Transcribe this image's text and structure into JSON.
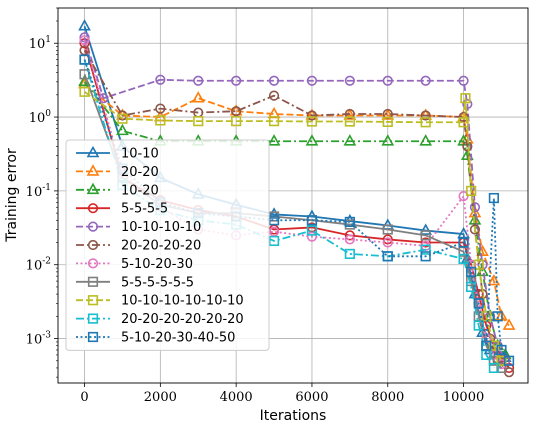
{
  "chart_data": {
    "type": "line",
    "xlabel": "Iterations",
    "ylabel": "Training error",
    "xlim": [
      -700,
      11700
    ],
    "ylim": [
      0.00025,
      30
    ],
    "yscale": "log",
    "xticks": [
      0,
      2000,
      4000,
      6000,
      8000,
      10000
    ],
    "yticks": [
      0.001,
      0.01,
      0.1,
      1,
      10
    ],
    "ytick_labels": [
      "10^-3",
      "10^-2",
      "10^-1",
      "10^0",
      "10^1"
    ],
    "legend_position": "lower-left",
    "series": [
      {
        "name": "10-10",
        "color": "#1f77b4",
        "dash": "solid",
        "marker": "triangle",
        "points": [
          [
            0,
            17
          ],
          [
            1000,
            0.4
          ],
          [
            2000,
            0.15
          ],
          [
            3000,
            0.09
          ],
          [
            4000,
            0.065
          ],
          [
            5000,
            0.048
          ],
          [
            6000,
            0.045
          ],
          [
            7000,
            0.039
          ],
          [
            8000,
            0.034
          ],
          [
            9000,
            0.029
          ],
          [
            10000,
            0.026
          ],
          [
            10100,
            0.012
          ],
          [
            10300,
            0.004
          ],
          [
            10500,
            0.0012
          ],
          [
            10700,
            0.0007
          ],
          [
            10900,
            0.0006
          ],
          [
            11100,
            0.00055
          ]
        ]
      },
      {
        "name": "20-20",
        "color": "#ff7f0e",
        "dash": "dashed",
        "marker": "triangle",
        "points": [
          [
            0,
            2.8
          ],
          [
            1000,
            1.05
          ],
          [
            2000,
            1.0
          ],
          [
            3000,
            1.8
          ],
          [
            4000,
            1.2
          ],
          [
            5000,
            1.1
          ],
          [
            6000,
            1.05
          ],
          [
            7000,
            1.05
          ],
          [
            8000,
            1.05
          ],
          [
            9000,
            1.05
          ],
          [
            10000,
            1.0
          ],
          [
            10100,
            0.5
          ],
          [
            10300,
            0.05
          ],
          [
            10500,
            0.015
          ],
          [
            10800,
            0.006
          ],
          [
            11000,
            0.002
          ],
          [
            11200,
            0.0015
          ]
        ]
      },
      {
        "name": "10-20",
        "color": "#2ca02c",
        "dash": "dashdot",
        "marker": "triangle",
        "points": [
          [
            0,
            3.0
          ],
          [
            1000,
            0.65
          ],
          [
            2000,
            0.47
          ],
          [
            3000,
            0.47
          ],
          [
            4000,
            0.47
          ],
          [
            5000,
            0.47
          ],
          [
            6000,
            0.47
          ],
          [
            7000,
            0.47
          ],
          [
            8000,
            0.47
          ],
          [
            9000,
            0.47
          ],
          [
            10000,
            0.47
          ],
          [
            10100,
            0.3
          ],
          [
            10300,
            0.04
          ],
          [
            10500,
            0.008
          ],
          [
            10700,
            0.002
          ],
          [
            10900,
            0.0008
          ],
          [
            11100,
            0.0006
          ]
        ]
      },
      {
        "name": "5-5-5-5",
        "color": "#d62728",
        "dash": "solid",
        "marker": "circle",
        "points": [
          [
            0,
            10
          ],
          [
            1000,
            0.15
          ],
          [
            2000,
            0.075
          ],
          [
            3000,
            0.055
          ],
          [
            4000,
            0.045
          ],
          [
            5000,
            0.03
          ],
          [
            6000,
            0.032
          ],
          [
            7000,
            0.025
          ],
          [
            8000,
            0.022
          ],
          [
            9000,
            0.02
          ],
          [
            10000,
            0.02
          ],
          [
            10200,
            0.01
          ],
          [
            10400,
            0.004
          ],
          [
            10600,
            0.0015
          ],
          [
            10800,
            0.0008
          ],
          [
            11000,
            0.00055
          ],
          [
            11200,
            0.0004
          ]
        ]
      },
      {
        "name": "10-10-10-10",
        "color": "#9467bd",
        "dash": "dashed",
        "marker": "circle",
        "points": [
          [
            0,
            12
          ],
          [
            500,
            1.8
          ],
          [
            2000,
            3.2
          ],
          [
            3000,
            3.1
          ],
          [
            4000,
            3.1
          ],
          [
            5000,
            3.1
          ],
          [
            6000,
            3.1
          ],
          [
            7000,
            3.1
          ],
          [
            8000,
            3.1
          ],
          [
            9000,
            3.1
          ],
          [
            10000,
            3.1
          ],
          [
            10100,
            1.5
          ],
          [
            10300,
            0.06
          ],
          [
            10500,
            0.01
          ],
          [
            10700,
            0.002
          ],
          [
            10900,
            0.0008
          ],
          [
            11100,
            0.0005
          ]
        ]
      },
      {
        "name": "20-20-20-20",
        "color": "#8c564b",
        "dash": "dashdot",
        "marker": "circle",
        "points": [
          [
            0,
            8
          ],
          [
            1000,
            1.05
          ],
          [
            2000,
            1.3
          ],
          [
            3000,
            1.15
          ],
          [
            4000,
            1.2
          ],
          [
            5000,
            1.95
          ],
          [
            6000,
            1.05
          ],
          [
            7000,
            1.1
          ],
          [
            8000,
            1.1
          ],
          [
            9000,
            1.05
          ],
          [
            10000,
            1.0
          ],
          [
            10100,
            0.4
          ],
          [
            10300,
            0.03
          ],
          [
            10500,
            0.004
          ],
          [
            10700,
            0.001
          ],
          [
            10900,
            0.0005
          ],
          [
            11200,
            0.00035
          ]
        ]
      },
      {
        "name": "5-10-20-30",
        "color": "#e377c2",
        "dash": "dotted",
        "marker": "circle",
        "points": [
          [
            0,
            11
          ],
          [
            1000,
            0.18
          ],
          [
            2000,
            0.06
          ],
          [
            3000,
            0.03
          ],
          [
            4000,
            0.025
          ],
          [
            5000,
            0.028
          ],
          [
            6000,
            0.024
          ],
          [
            7000,
            0.022
          ],
          [
            8000,
            0.02
          ],
          [
            9000,
            0.018
          ],
          [
            10000,
            0.085
          ],
          [
            10200,
            0.01
          ],
          [
            10400,
            0.003
          ],
          [
            10600,
            0.001
          ],
          [
            10800,
            0.0006
          ],
          [
            11000,
            0.00045
          ]
        ]
      },
      {
        "name": "5-5-5-5-5-5",
        "color": "#7f7f7f",
        "dash": "solid",
        "marker": "square",
        "points": [
          [
            0,
            3.8
          ],
          [
            1000,
            0.15
          ],
          [
            2000,
            0.065
          ],
          [
            3000,
            0.05
          ],
          [
            4000,
            0.05
          ],
          [
            5000,
            0.045
          ],
          [
            6000,
            0.04
          ],
          [
            7000,
            0.035
          ],
          [
            8000,
            0.03
          ],
          [
            9000,
            0.025
          ],
          [
            10000,
            0.015
          ],
          [
            10200,
            0.006
          ],
          [
            10400,
            0.002
          ],
          [
            10600,
            0.0008
          ],
          [
            10800,
            0.0005
          ],
          [
            11000,
            0.0004
          ]
        ]
      },
      {
        "name": "10-10-10-10-10-10",
        "color": "#bcbd22",
        "dash": "dashed",
        "marker": "square",
        "points": [
          [
            0,
            2.2
          ],
          [
            1000,
            0.95
          ],
          [
            2000,
            0.9
          ],
          [
            3000,
            0.88
          ],
          [
            4000,
            0.88
          ],
          [
            5000,
            0.88
          ],
          [
            6000,
            0.87
          ],
          [
            7000,
            0.87
          ],
          [
            8000,
            0.86
          ],
          [
            9000,
            0.85
          ],
          [
            10000,
            0.85
          ],
          [
            10050,
            1.8
          ],
          [
            10200,
            0.1
          ],
          [
            10400,
            0.01
          ],
          [
            10600,
            0.002
          ],
          [
            10800,
            0.0008
          ],
          [
            11000,
            0.0005
          ]
        ]
      },
      {
        "name": "20-20-20-20-20-20",
        "color": "#17becf",
        "dash": "dashdot",
        "marker": "square",
        "points": [
          [
            0,
            6
          ],
          [
            1000,
            0.12
          ],
          [
            2000,
            0.055
          ],
          [
            3000,
            0.04
          ],
          [
            4000,
            0.035
          ],
          [
            5000,
            0.021
          ],
          [
            6000,
            0.029
          ],
          [
            7000,
            0.014
          ],
          [
            8000,
            0.013
          ],
          [
            9000,
            0.016
          ],
          [
            10000,
            0.012
          ],
          [
            10200,
            0.005
          ],
          [
            10400,
            0.0015
          ],
          [
            10600,
            0.0006
          ],
          [
            10800,
            0.0004
          ]
        ]
      },
      {
        "name": "5-10-20-30-40-50",
        "color": "#1f77b4",
        "dash": "dotted",
        "marker": "square",
        "points": [
          [
            0,
            6
          ],
          [
            1000,
            0.2
          ],
          [
            2000,
            0.07
          ],
          [
            3000,
            0.05
          ],
          [
            4000,
            0.045
          ],
          [
            5000,
            0.04
          ],
          [
            6000,
            0.04
          ],
          [
            7000,
            0.038
          ],
          [
            8000,
            0.013
          ],
          [
            9000,
            0.013
          ],
          [
            10000,
            0.02
          ],
          [
            10200,
            0.008
          ],
          [
            10400,
            0.003
          ],
          [
            10600,
            0.0008
          ],
          [
            10800,
            0.08
          ],
          [
            10900,
            0.002
          ],
          [
            11000,
            0.0007
          ],
          [
            11200,
            0.0005
          ]
        ]
      }
    ]
  }
}
